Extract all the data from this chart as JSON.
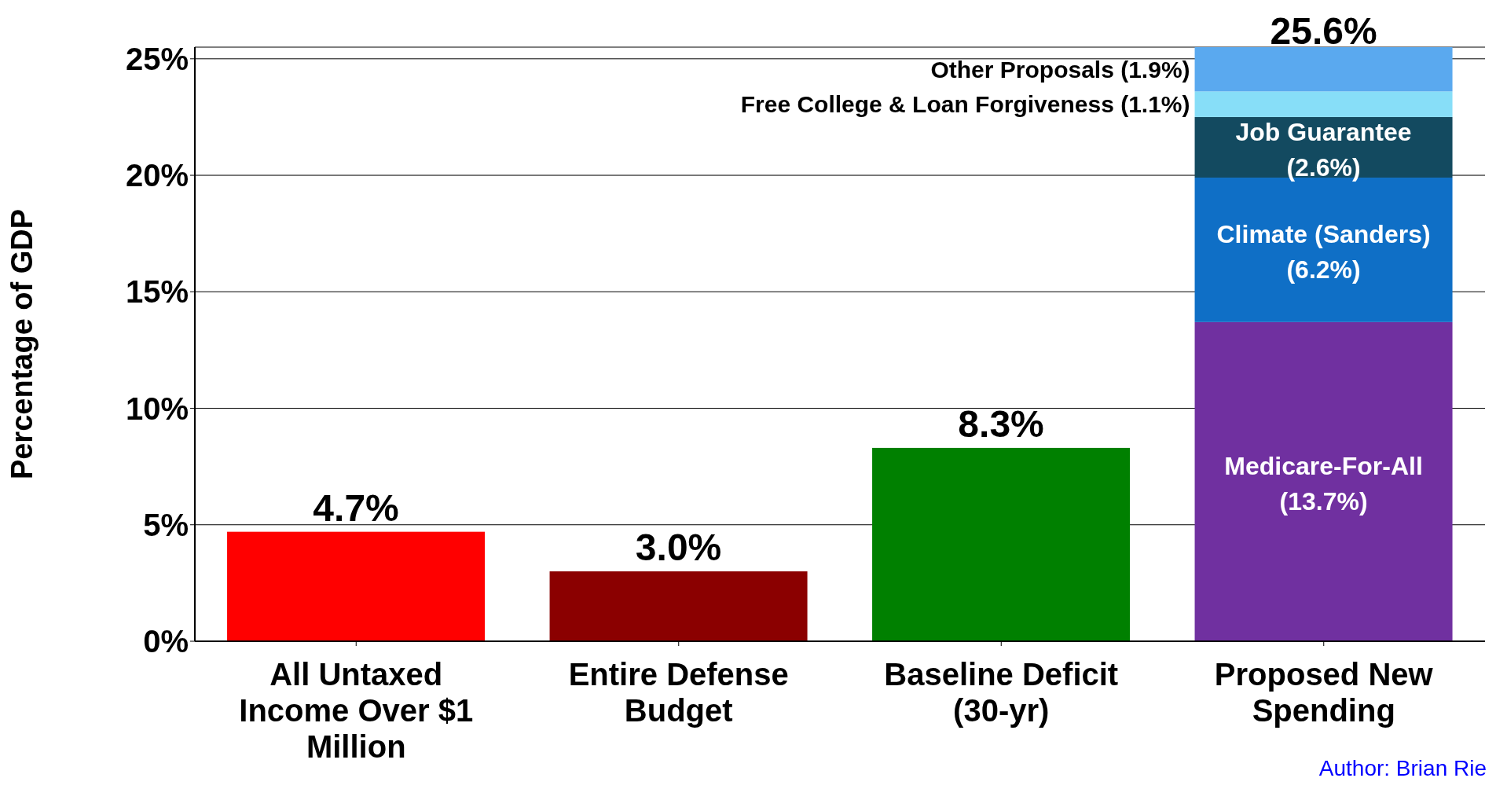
{
  "chart_data": {
    "type": "bar",
    "stacked": true,
    "ylabel": "Percentage of GDP",
    "categories": [
      "All Untaxed Income Over $1 Million",
      "Entire Defense Budget",
      "Baseline Deficit (30-yr)",
      "Proposed New Spending"
    ],
    "series": [
      {
        "colors": [
          "#ff0000",
          "#8b0000",
          "#008000",
          "#7030a0"
        ],
        "values": [
          4.7,
          3.0,
          8.3,
          null
        ],
        "value_labels": [
          "4.7%",
          "3.0%",
          "8.3%",
          null
        ]
      },
      {
        "name": "Medicare-For-All",
        "color": "#7030a0",
        "values": [
          null,
          null,
          null,
          13.7
        ],
        "value_labels": [
          null,
          null,
          null,
          "(13.7%)"
        ]
      },
      {
        "name": "Climate (Sanders)",
        "color": "#0f6fc6",
        "values": [
          null,
          null,
          null,
          6.2
        ],
        "value_labels": [
          null,
          null,
          null,
          "(6.2%)"
        ]
      },
      {
        "name": "Job Guarantee",
        "color": "#134a60",
        "values": [
          null,
          null,
          null,
          2.6
        ],
        "value_labels": [
          null,
          null,
          null,
          "(2.6%)"
        ]
      },
      {
        "name": "Free College & Loan Forgiveness",
        "color": "#87def8",
        "values": [
          null,
          null,
          null,
          1.1
        ],
        "value_labels": [
          null,
          null,
          null,
          "(1.1%)"
        ]
      },
      {
        "name": "Other Proposals",
        "color": "#5aa9ef",
        "values": [
          null,
          null,
          null,
          1.9
        ],
        "value_labels": [
          null,
          null,
          null,
          "(1.9%)"
        ]
      }
    ],
    "totals": [
      null,
      null,
      null,
      "25.6%"
    ],
    "ylim": [
      0,
      25.5
    ],
    "yticks": [
      {
        "value": 0,
        "label": "0%"
      },
      {
        "value": 5,
        "label": "5%"
      },
      {
        "value": 10,
        "label": "10%"
      },
      {
        "value": 15,
        "label": "15%"
      },
      {
        "value": 20,
        "label": "20%"
      },
      {
        "value": 25,
        "label": "25%"
      }
    ],
    "grid": "y",
    "legend": false,
    "annotations": [
      "Author: Brian Rie"
    ]
  }
}
